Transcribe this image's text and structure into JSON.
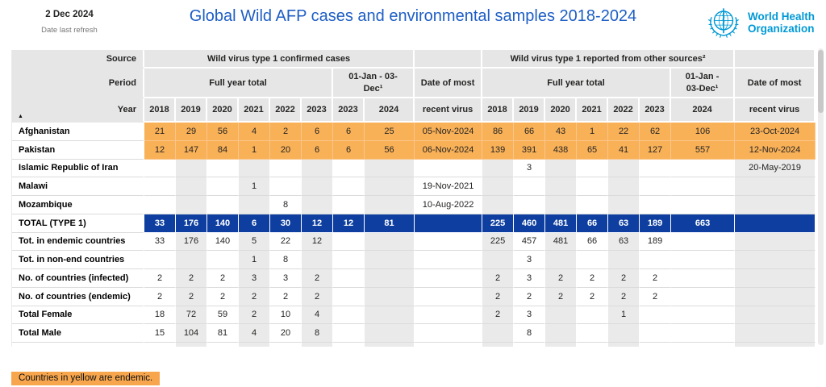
{
  "header": {
    "refresh_date": "2 Dec 2024",
    "refresh_label": "Date last refresh",
    "title": "Global Wild AFP cases and environmental samples 2018-2024",
    "logo_line1": "World Health",
    "logo_line2": "Organization"
  },
  "table": {
    "corner": {
      "source_label": "Source",
      "period_label": "Period",
      "year_label": "Year",
      "sort_icon": "▲"
    },
    "sections": [
      {
        "title": "Wild virus type 1 confirmed cases"
      },
      {
        "title": "Wild virus type 1 reported from other sources²"
      }
    ],
    "period_labels": {
      "full_year": "Full year total",
      "jan_dec": "01-Jan - 03-Dec¹",
      "date_of_most": "Date of most",
      "recent_virus": "recent virus"
    },
    "columns": {
      "full_year_left": [
        "2018",
        "2019",
        "2020",
        "2021",
        "2022",
        "2023"
      ],
      "jan_dec_left": [
        "2023",
        "2024"
      ],
      "full_year_right": [
        "2018",
        "2019",
        "2020",
        "2021",
        "2022",
        "2023"
      ],
      "jan_dec_right": [
        "2024"
      ]
    },
    "rows": [
      {
        "label": "Afghanistan",
        "type": "endemic",
        "left": [
          "21",
          "29",
          "56",
          "4",
          "2",
          "6",
          "6",
          "25"
        ],
        "left_date": "05-Nov-2024",
        "right": [
          "86",
          "66",
          "43",
          "1",
          "22",
          "62",
          "106"
        ],
        "right_date": "23-Oct-2024"
      },
      {
        "label": "Pakistan",
        "type": "endemic",
        "left": [
          "12",
          "147",
          "84",
          "1",
          "20",
          "6",
          "6",
          "56"
        ],
        "left_date": "06-Nov-2024",
        "right": [
          "139",
          "391",
          "438",
          "65",
          "41",
          "127",
          "557"
        ],
        "right_date": "12-Nov-2024"
      },
      {
        "label": "Islamic Republic of Iran",
        "type": "normal",
        "left": [
          "",
          "",
          "",
          "",
          "",
          "",
          "",
          ""
        ],
        "left_date": "",
        "right": [
          "",
          "3",
          "",
          "",
          "",
          "",
          ""
        ],
        "right_date": "20-May-2019"
      },
      {
        "label": "Malawi",
        "type": "normal",
        "left": [
          "",
          "",
          "",
          "1",
          "",
          "",
          "",
          ""
        ],
        "left_date": "19-Nov-2021",
        "right": [
          "",
          "",
          "",
          "",
          "",
          "",
          ""
        ],
        "right_date": ""
      },
      {
        "label": "Mozambique",
        "type": "normal",
        "left": [
          "",
          "",
          "",
          "",
          "8",
          "",
          "",
          ""
        ],
        "left_date": "10-Aug-2022",
        "right": [
          "",
          "",
          "",
          "",
          "",
          "",
          ""
        ],
        "right_date": ""
      },
      {
        "label": "TOTAL (TYPE 1)",
        "type": "total",
        "left": [
          "33",
          "176",
          "140",
          "6",
          "30",
          "12",
          "12",
          "81"
        ],
        "left_date": "",
        "right": [
          "225",
          "460",
          "481",
          "66",
          "63",
          "189",
          "663"
        ],
        "right_date": ""
      },
      {
        "label": "Tot. in endemic countries",
        "type": "normal",
        "left": [
          "33",
          "176",
          "140",
          "5",
          "22",
          "12",
          "",
          ""
        ],
        "left_date": "",
        "right": [
          "225",
          "457",
          "481",
          "66",
          "63",
          "189",
          ""
        ],
        "right_date": ""
      },
      {
        "label": "Tot. in non-end countries",
        "type": "normal",
        "left": [
          "",
          "",
          "",
          "1",
          "8",
          "",
          "",
          ""
        ],
        "left_date": "",
        "right": [
          "",
          "3",
          "",
          "",
          "",
          "",
          ""
        ],
        "right_date": ""
      },
      {
        "label": "No. of countries (infected)",
        "type": "normal",
        "left": [
          "2",
          "2",
          "2",
          "3",
          "3",
          "2",
          "",
          ""
        ],
        "left_date": "",
        "right": [
          "2",
          "3",
          "2",
          "2",
          "2",
          "2",
          ""
        ],
        "right_date": ""
      },
      {
        "label": "No. of countries (endemic)",
        "type": "normal",
        "left": [
          "2",
          "2",
          "2",
          "2",
          "2",
          "2",
          "",
          ""
        ],
        "left_date": "",
        "right": [
          "2",
          "2",
          "2",
          "2",
          "2",
          "2",
          ""
        ],
        "right_date": ""
      },
      {
        "label": "Total Female",
        "type": "normal",
        "left": [
          "18",
          "72",
          "59",
          "2",
          "10",
          "4",
          "",
          ""
        ],
        "left_date": "",
        "right": [
          "2",
          "3",
          "",
          "",
          "1",
          "",
          ""
        ],
        "right_date": ""
      },
      {
        "label": "Total Male",
        "type": "normal",
        "left": [
          "15",
          "104",
          "81",
          "4",
          "20",
          "8",
          "",
          ""
        ],
        "left_date": "",
        "right": [
          "",
          "8",
          "",
          "",
          "",
          "",
          ""
        ],
        "right_date": ""
      }
    ]
  },
  "footer": {
    "note": "Countries in yellow are endemic."
  },
  "colors": {
    "title_blue": "#1E5EC5",
    "who_blue": "#0099D6",
    "endemic_row_orange": "#F9B158",
    "note_orange": "#F7A64E",
    "total_row_blue": "#0E3FA0",
    "header_gray": "#E6E6E6",
    "band_gray": "#EAEAEA"
  }
}
